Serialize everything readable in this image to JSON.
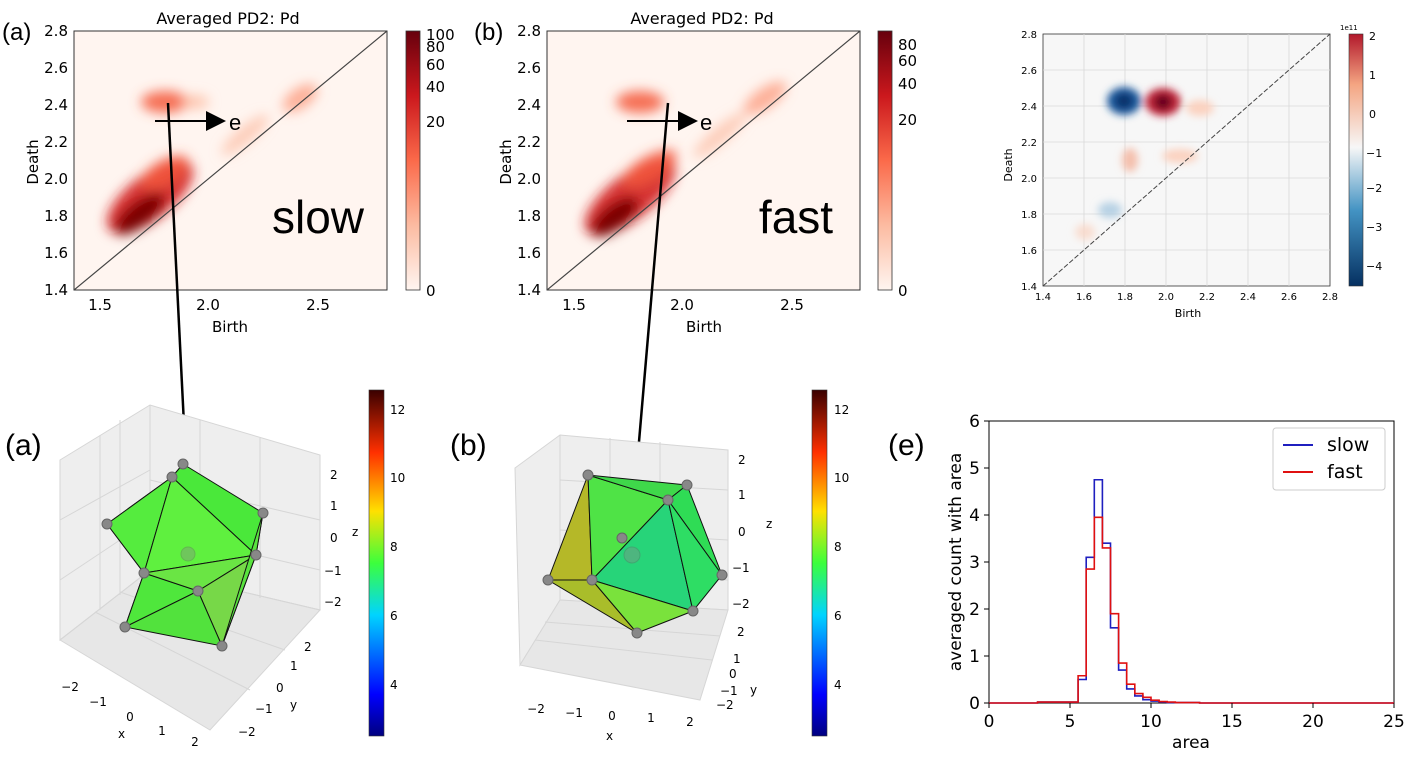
{
  "panel_letters": {
    "a_top": "(a)",
    "b_top": "(b)",
    "a_bottom": "(a)",
    "b_bottom": "(b)",
    "e": "(e)"
  },
  "heatmap_a": {
    "title": "Averaged PD2: Pd",
    "xlabel": "Birth",
    "ylabel": "Death",
    "xticks": [
      "1.5",
      "2.0",
      "2.5"
    ],
    "yticks": [
      "1.4",
      "1.6",
      "1.8",
      "2.0",
      "2.2",
      "2.4",
      "2.6",
      "2.8"
    ],
    "colorbar_ticks": [
      "100",
      "80",
      "60",
      "40",
      "20",
      "0"
    ],
    "overlay_label": "slow",
    "arrow_label": "e"
  },
  "heatmap_b": {
    "title": "Averaged PD2: Pd",
    "xlabel": "Birth",
    "ylabel": "Death",
    "xticks": [
      "1.5",
      "2.0",
      "2.5"
    ],
    "yticks": [
      "1.4",
      "1.6",
      "1.8",
      "2.0",
      "2.2",
      "2.4",
      "2.6",
      "2.8"
    ],
    "colorbar_ticks": [
      "80",
      "60",
      "40",
      "20",
      "0"
    ],
    "overlay_label": "fast",
    "arrow_label": "e"
  },
  "diffmap": {
    "xlabel": "Birth",
    "ylabel": "Death",
    "xticks": [
      "1.4",
      "1.6",
      "1.8",
      "2.0",
      "2.2",
      "2.4",
      "2.6",
      "2.8"
    ],
    "yticks": [
      "1.4",
      "1.6",
      "1.8",
      "2.0",
      "2.2",
      "2.4",
      "2.6",
      "2.8"
    ],
    "scale_label": "1e11",
    "colorbar_ticks": [
      "2",
      "1",
      "0",
      "−1",
      "−2",
      "−3",
      "−4"
    ]
  },
  "poly_a": {
    "xticks": [
      "−2",
      "−1",
      "0",
      "1",
      "2"
    ],
    "yticks": [
      "2",
      "1",
      "0",
      "−1",
      "−2"
    ],
    "zticks": [
      "2",
      "1",
      "0",
      "−1",
      "−2"
    ],
    "xlabel": "x",
    "ylabel": "y",
    "zlabel": "z",
    "colorbar_ticks": [
      "12",
      "10",
      "8",
      "6",
      "4"
    ]
  },
  "poly_b": {
    "xticks": [
      "−2",
      "−1",
      "0",
      "1",
      "2"
    ],
    "yticks": [
      "2",
      "1",
      "0",
      "−1",
      "−2"
    ],
    "zticks": [
      "2",
      "1",
      "0",
      "−1",
      "−2"
    ],
    "xlabel": "x",
    "ylabel": "y",
    "zlabel": "z",
    "colorbar_ticks": [
      "12",
      "10",
      "8",
      "6",
      "4"
    ]
  },
  "chart_data": [
    {
      "type": "heatmap",
      "title": "Averaged PD2: Pd",
      "xlabel": "Birth",
      "ylabel": "Death",
      "xlim": [
        1.4,
        2.8
      ],
      "ylim": [
        1.4,
        2.8
      ],
      "colorbar_range": [
        0,
        100
      ],
      "hotspots": [
        {
          "birth": 1.65,
          "death": 1.72,
          "intensity": "high"
        },
        {
          "birth": 1.8,
          "death": 2.42,
          "intensity": "medium"
        },
        {
          "birth": 2.4,
          "death": 2.45,
          "intensity": "low"
        }
      ],
      "annotation": "slow"
    },
    {
      "type": "heatmap",
      "title": "Averaged PD2: Pd",
      "xlabel": "Birth",
      "ylabel": "Death",
      "xlim": [
        1.4,
        2.8
      ],
      "ylim": [
        1.4,
        2.8
      ],
      "colorbar_range": [
        0,
        90
      ],
      "hotspots": [
        {
          "birth": 1.68,
          "death": 1.75,
          "intensity": "high"
        },
        {
          "birth": 1.78,
          "death": 2.42,
          "intensity": "medium"
        },
        {
          "birth": 2.35,
          "death": 2.42,
          "intensity": "low"
        }
      ],
      "annotation": "fast"
    },
    {
      "type": "heatmap",
      "xlabel": "Birth",
      "xlim": [
        1.4,
        2.8
      ],
      "ylim": [
        1.4,
        2.8
      ],
      "colorbar_range": [
        -4.5,
        2
      ],
      "colorbar_scale": "1e11",
      "hotspots": [
        {
          "birth": 1.8,
          "death": 2.42,
          "value": -4
        },
        {
          "birth": 1.97,
          "death": 2.41,
          "value": 2
        }
      ]
    },
    {
      "type": "line",
      "title": "",
      "xlabel": "area",
      "ylabel": "averaged count with area",
      "xlim": [
        0,
        25
      ],
      "ylim": [
        0,
        6
      ],
      "xticks": [
        "0",
        "5",
        "10",
        "15",
        "20",
        "25"
      ],
      "yticks": [
        "0",
        "1",
        "2",
        "3",
        "4",
        "5",
        "6"
      ],
      "legend": "top-right",
      "bin_edges": [
        3,
        5.5,
        6,
        6.5,
        7,
        7.5,
        8,
        8.5,
        9,
        9.5,
        10,
        10.5,
        11,
        11.5,
        12,
        13,
        14
      ],
      "series": [
        {
          "name": "slow",
          "color": "#1f1fbf",
          "values": [
            0.02,
            0.5,
            3.1,
            4.75,
            3.4,
            1.6,
            0.7,
            0.3,
            0.15,
            0.07,
            0.04,
            0.02,
            0.01,
            0.01,
            0.01,
            0
          ]
        },
        {
          "name": "fast",
          "color": "#e01010",
          "values": [
            0.02,
            0.58,
            2.85,
            3.95,
            3.3,
            1.9,
            0.85,
            0.4,
            0.2,
            0.12,
            0.06,
            0.03,
            0.02,
            0.01,
            0.01,
            0
          ]
        }
      ]
    }
  ]
}
